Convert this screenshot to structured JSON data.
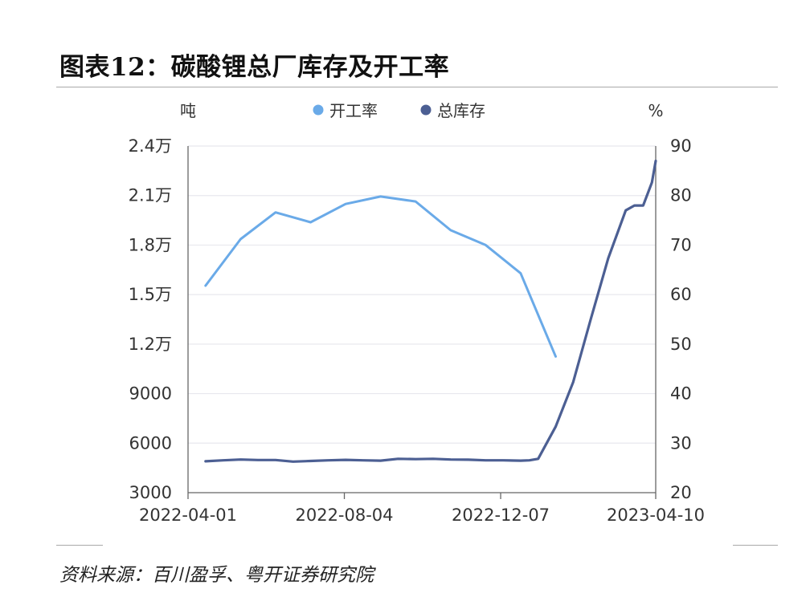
{
  "header": {
    "title": "图表12：碳酸锂总厂库存及开工率"
  },
  "footer": {
    "source": "资料来源：百川盈孚、粤开证券研究院"
  },
  "chart_data": {
    "type": "line",
    "left_unit": "吨",
    "right_unit": "%",
    "legend_position": "top-center",
    "grid": true,
    "x_ticks": [
      "2022-04-01",
      "2022-08-04",
      "2022-12-07",
      "2023-04-10"
    ],
    "x_range": [
      "2022-04-01",
      "2023-04-10"
    ],
    "y_left": {
      "min": 3000,
      "max": 24000,
      "ticks": [
        3000,
        6000,
        9000,
        12000,
        15000,
        18000,
        21000,
        24000
      ],
      "tick_labels": [
        "3000",
        "6000",
        "9000",
        "1.2万",
        "1.5万",
        "1.8万",
        "2.1万",
        "2.4万"
      ]
    },
    "y_right": {
      "min": 20,
      "max": 90,
      "ticks": [
        20,
        30,
        40,
        50,
        60,
        70,
        80,
        90
      ],
      "tick_labels": [
        "20",
        "30",
        "40",
        "50",
        "60",
        "70",
        "80",
        "90"
      ]
    },
    "series": [
      {
        "name": "开工率",
        "axis": "right",
        "color": "#6aaae8",
        "points": [
          [
            "2022-04-15",
            61.8
          ],
          [
            "2022-05-13",
            71.2
          ],
          [
            "2022-06-10",
            76.6
          ],
          [
            "2022-07-08",
            74.6
          ],
          [
            "2022-08-05",
            78.3
          ],
          [
            "2022-09-02",
            79.8
          ],
          [
            "2022-09-30",
            78.8
          ],
          [
            "2022-10-28",
            73.0
          ],
          [
            "2022-11-25",
            70.0
          ],
          [
            "2022-12-23",
            64.3
          ],
          [
            "2023-01-20",
            47.5
          ]
        ]
      },
      {
        "name": "总库存",
        "axis": "left",
        "color": "#4c5f93",
        "points": [
          [
            "2022-04-15",
            4900
          ],
          [
            "2022-04-29",
            4960
          ],
          [
            "2022-05-13",
            5010
          ],
          [
            "2022-05-27",
            4980
          ],
          [
            "2022-06-10",
            4980
          ],
          [
            "2022-06-24",
            4880
          ],
          [
            "2022-07-08",
            4920
          ],
          [
            "2022-07-22",
            4960
          ],
          [
            "2022-08-05",
            4990
          ],
          [
            "2022-08-19",
            4960
          ],
          [
            "2022-09-02",
            4940
          ],
          [
            "2022-09-16",
            5050
          ],
          [
            "2022-09-30",
            5030
          ],
          [
            "2022-10-14",
            5050
          ],
          [
            "2022-10-28",
            5010
          ],
          [
            "2022-11-11",
            5000
          ],
          [
            "2022-11-25",
            4960
          ],
          [
            "2022-12-09",
            4960
          ],
          [
            "2022-12-23",
            4940
          ],
          [
            "2022-12-30",
            4960
          ],
          [
            "2023-01-06",
            5050
          ],
          [
            "2023-01-20",
            7000
          ],
          [
            "2023-02-03",
            9700
          ],
          [
            "2023-02-17",
            13500
          ],
          [
            "2023-03-03",
            17200
          ],
          [
            "2023-03-17",
            20100
          ],
          [
            "2023-03-24",
            20400
          ],
          [
            "2023-03-31",
            20400
          ],
          [
            "2023-04-07",
            21800
          ],
          [
            "2023-04-10",
            23100
          ]
        ]
      }
    ]
  }
}
